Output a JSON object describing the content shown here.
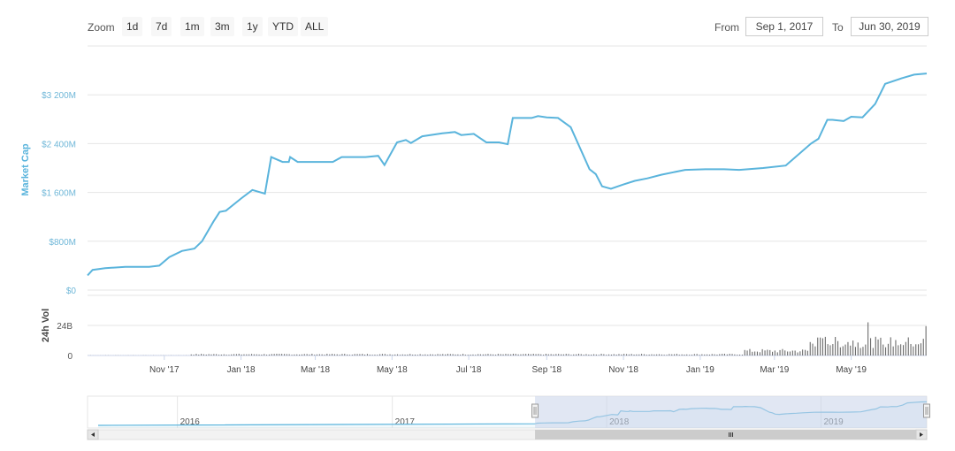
{
  "toolbar": {
    "zoom_label": "Zoom",
    "zoom_buttons": [
      "1d",
      "7d",
      "1m",
      "3m",
      "1y",
      "YTD",
      "ALL"
    ],
    "from_label": "From",
    "from_value": "Sep 1, 2017",
    "to_label": "To",
    "to_value": "Jun 30, 2019"
  },
  "colors": {
    "line": "#5ab4dc",
    "volume": "#6b6b6b",
    "navigator_mask": "#c9d3ea",
    "grid": "#e6e6e6"
  },
  "chart_data": [
    {
      "type": "line",
      "ylabel": "Market Cap",
      "ylim": [
        0,
        4000
      ],
      "yticks": [
        0,
        800,
        1600,
        2400,
        3200
      ],
      "ytick_labels": [
        "$0",
        "$800M",
        "$1 600M",
        "$2 400M",
        "$3 200M"
      ],
      "x_ticks": [
        "Nov '17",
        "Jan '18",
        "Mar '18",
        "May '18",
        "Jul '18",
        "Sep '18",
        "Nov '18",
        "Jan '19",
        "Mar '19",
        "May '19"
      ],
      "x_tick_dates": [
        "2017-11-01",
        "2018-01-01",
        "2018-03-01",
        "2018-05-01",
        "2018-07-01",
        "2018-09-01",
        "2018-11-01",
        "2019-01-01",
        "2019-03-01",
        "2019-05-01"
      ],
      "xlim": [
        "2017-09-01",
        "2019-06-30"
      ],
      "series": [
        {
          "x": [
            "2017-09-01",
            "2017-09-05",
            "2017-09-15",
            "2017-10-01",
            "2017-10-20",
            "2017-10-28",
            "2017-11-05",
            "2017-11-15",
            "2017-11-25",
            "2017-12-01",
            "2017-12-10",
            "2017-12-15",
            "2017-12-20",
            "2018-01-01",
            "2018-01-10",
            "2018-01-20",
            "2018-01-25",
            "2018-02-03",
            "2018-02-08",
            "2018-02-09",
            "2018-02-15",
            "2018-03-01",
            "2018-03-15",
            "2018-03-22",
            "2018-03-25",
            "2018-04-10",
            "2018-04-20",
            "2018-04-25",
            "2018-05-05",
            "2018-05-12",
            "2018-05-16",
            "2018-05-25",
            "2018-06-10",
            "2018-06-20",
            "2018-06-25",
            "2018-07-05",
            "2018-07-15",
            "2018-07-25",
            "2018-08-01",
            "2018-08-05",
            "2018-08-20",
            "2018-08-25",
            "2018-09-01",
            "2018-09-10",
            "2018-09-20",
            "2018-10-05",
            "2018-10-10",
            "2018-10-15",
            "2018-10-22",
            "2018-11-01",
            "2018-11-10",
            "2018-11-20",
            "2018-12-01",
            "2018-12-20",
            "2019-01-05",
            "2019-01-20",
            "2019-02-01",
            "2019-02-20",
            "2019-03-10",
            "2019-03-30",
            "2019-04-05",
            "2019-04-12",
            "2019-04-16",
            "2019-04-25",
            "2019-05-01",
            "2019-05-10",
            "2019-05-20",
            "2019-05-28",
            "2019-06-10",
            "2019-06-20",
            "2019-06-30"
          ],
          "values": [
            240,
            330,
            360,
            380,
            380,
            400,
            540,
            640,
            680,
            800,
            1120,
            1280,
            1300,
            1500,
            1640,
            1580,
            2180,
            2100,
            2100,
            2180,
            2100,
            2100,
            2100,
            2180,
            2180,
            2180,
            2200,
            2050,
            2420,
            2460,
            2410,
            2520,
            2570,
            2590,
            2540,
            2560,
            2420,
            2420,
            2390,
            2820,
            2820,
            2850,
            2830,
            2820,
            2670,
            1980,
            1900,
            1700,
            1660,
            1730,
            1790,
            1830,
            1890,
            1970,
            1980,
            1980,
            1970,
            2000,
            2040,
            2400,
            2480,
            2790,
            2790,
            2770,
            2840,
            2830,
            3050,
            3380,
            3470,
            3530,
            3550
          ]
        }
      ]
    },
    {
      "type": "bar",
      "ylabel": "24h Vol",
      "ylim": [
        0,
        48
      ],
      "yticks": [
        0,
        24
      ],
      "ytick_labels": [
        "0",
        "24B"
      ],
      "xlim": [
        "2017-09-01",
        "2019-06-30"
      ]
    },
    {
      "type": "area",
      "role": "navigator",
      "x_ticks": [
        "2016",
        "2017",
        "2018",
        "2019"
      ],
      "x_tick_dates": [
        "2016-01-01",
        "2017-01-01",
        "2018-01-01",
        "2019-01-01"
      ],
      "xlim": [
        "2015-08-01",
        "2019-06-30"
      ],
      "selected_range": [
        "2017-09-01",
        "2019-06-30"
      ]
    }
  ]
}
